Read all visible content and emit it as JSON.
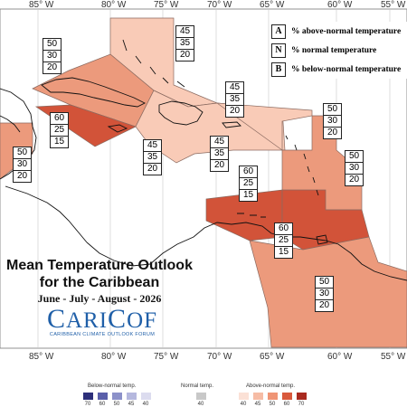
{
  "longitude_labels": [
    "85° W",
    "80° W",
    "75° W",
    "70° W",
    "65° W",
    "60° W",
    "55° W"
  ],
  "key": [
    {
      "letter": "A",
      "text": "% above-normal temperature"
    },
    {
      "letter": "N",
      "text": "% normal temperature"
    },
    {
      "letter": "B",
      "text": "% below-normal temperature"
    }
  ],
  "regions": [
    {
      "id": "bahamas",
      "probs": [
        "45",
        "35",
        "20"
      ]
    },
    {
      "id": "cuba-north",
      "probs": [
        "50",
        "30",
        "20"
      ]
    },
    {
      "id": "cuba-cayman",
      "probs": [
        "60",
        "25",
        "15"
      ]
    },
    {
      "id": "belize",
      "probs": [
        "50",
        "30",
        "20"
      ]
    },
    {
      "id": "jamaica",
      "probs": [
        "45",
        "35",
        "20"
      ]
    },
    {
      "id": "hispaniola",
      "probs": [
        "45",
        "35",
        "20"
      ]
    },
    {
      "id": "turks-caicos",
      "probs": [
        "45",
        "35",
        "20"
      ]
    },
    {
      "id": "northern-leewards",
      "probs": [
        "50",
        "30",
        "20"
      ]
    },
    {
      "id": "windwards",
      "probs": [
        "50",
        "30",
        "20"
      ]
    },
    {
      "id": "puerto-rico-abc",
      "probs": [
        "60",
        "25",
        "15"
      ]
    },
    {
      "id": "trinidad",
      "probs": [
        "60",
        "25",
        "15"
      ]
    },
    {
      "id": "guianas",
      "probs": [
        "50",
        "30",
        "20"
      ]
    }
  ],
  "title_lines": [
    "Mean Temperature Outlook",
    "for the Caribbean"
  ],
  "season": "June - July - August - 2026",
  "logo": {
    "word_first": "C",
    "word_rest": "ARI",
    "word_second": "C",
    "word_end": "OF",
    "tagline": "CARIBBEAN CLIMATE OUTLOOK FORUM"
  },
  "legend": {
    "below_label": "Below-normal temp.",
    "normal_label": "Normal temp.",
    "above_label": "Above-normal temp.",
    "below_ticks": [
      "70",
      "60",
      "50",
      "45",
      "40"
    ],
    "normal_ticks": [
      "40"
    ],
    "above_ticks": [
      "40",
      "45",
      "50",
      "60",
      "70"
    ],
    "below_colors": [
      "#2d2f7a",
      "#5a5faa",
      "#8c91c9",
      "#b5b8de",
      "#dcdcef"
    ],
    "normal_colors": [
      "#c8c8c8"
    ],
    "above_colors": [
      "#fbe1d6",
      "#f6bca5",
      "#ef9576",
      "#d9593c",
      "#a92a1f"
    ]
  },
  "colors": {
    "p45": "#f9cbb7",
    "p50": "#ec9a7c",
    "p60": "#d25339"
  }
}
